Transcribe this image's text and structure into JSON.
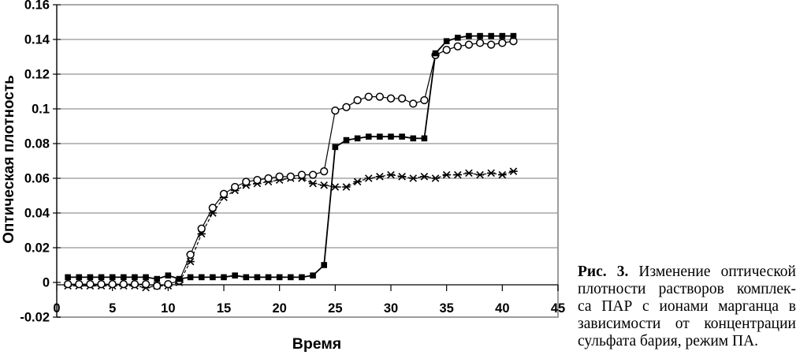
{
  "figure_caption": {
    "label": "Рис. 3.",
    "lines": [
      "Изменение оптической",
      "плотности растворов комплек-",
      "са ПАР с ионами марганца в",
      "зависимости от концентрации",
      "сульфата бария, режим ПА."
    ]
  },
  "chart_data": {
    "type": "line",
    "title": "",
    "xlabel": "Время",
    "ylabel": "Оптическая плотность",
    "xlim": [
      0,
      45
    ],
    "ylim": [
      -0.02,
      0.16
    ],
    "grid": true,
    "legend": "none",
    "colors": {
      "series": "#000000",
      "grid": "#7a7a7a",
      "border": "#9c9c9c"
    },
    "xticks": [
      {
        "v": 0,
        "label": "0"
      },
      {
        "v": 5,
        "label": "5"
      },
      {
        "v": 10,
        "label": "10"
      },
      {
        "v": 15,
        "label": "15"
      },
      {
        "v": 20,
        "label": "20"
      },
      {
        "v": 25,
        "label": "25"
      },
      {
        "v": 30,
        "label": "30"
      },
      {
        "v": 35,
        "label": "35"
      },
      {
        "v": 40,
        "label": "40"
      },
      {
        "v": 45,
        "label": "45"
      }
    ],
    "yticks": [
      {
        "v": -0.02,
        "label": "-0.02"
      },
      {
        "v": 0,
        "label": "0"
      },
      {
        "v": 0.02,
        "label": "0.02"
      },
      {
        "v": 0.04,
        "label": "0.04"
      },
      {
        "v": 0.06,
        "label": "0.06"
      },
      {
        "v": 0.08,
        "label": "0.08"
      },
      {
        "v": 0.1,
        "label": "0.1"
      },
      {
        "v": 0.12,
        "label": "0.12"
      },
      {
        "v": 0.14,
        "label": "0.14"
      },
      {
        "v": 0.16,
        "label": "0.16"
      }
    ],
    "x": [
      1,
      2,
      3,
      4,
      5,
      6,
      7,
      8,
      9,
      10,
      11,
      12,
      13,
      14,
      15,
      16,
      17,
      18,
      19,
      20,
      21,
      22,
      23,
      24,
      25,
      26,
      27,
      28,
      29,
      30,
      31,
      32,
      33,
      34,
      35,
      36,
      37,
      38,
      39,
      40,
      41
    ],
    "series": [
      {
        "name": "filled-squares",
        "marker": "square",
        "line_style": "solid",
        "values": [
          0.003,
          0.003,
          0.003,
          0.003,
          0.003,
          0.003,
          0.003,
          0.003,
          0.002,
          0.004,
          0.002,
          0.003,
          0.003,
          0.003,
          0.003,
          0.004,
          0.003,
          0.003,
          0.003,
          0.003,
          0.003,
          0.003,
          0.004,
          0.01,
          0.078,
          0.082,
          0.083,
          0.084,
          0.084,
          0.084,
          0.084,
          0.083,
          0.083,
          0.132,
          0.139,
          0.141,
          0.142,
          0.142,
          0.142,
          0.142,
          0.142
        ]
      },
      {
        "name": "open-circles",
        "marker": "circle",
        "line_style": "solid",
        "values": [
          -0.001,
          -0.001,
          -0.001,
          -0.001,
          -0.001,
          -0.001,
          -0.001,
          -0.001,
          -0.002,
          -0.001,
          0.001,
          0.016,
          0.031,
          0.043,
          0.051,
          0.055,
          0.058,
          0.059,
          0.06,
          0.061,
          0.061,
          0.062,
          0.062,
          0.064,
          0.099,
          0.101,
          0.105,
          0.107,
          0.107,
          0.106,
          0.106,
          0.103,
          0.105,
          0.131,
          0.134,
          0.136,
          0.137,
          0.138,
          0.137,
          0.138,
          0.139
        ]
      },
      {
        "name": "x-asterisks",
        "marker": "x-asterisk",
        "line_style": "dashed",
        "values": [
          -0.002,
          -0.002,
          -0.002,
          -0.002,
          -0.002,
          -0.002,
          -0.002,
          -0.003,
          -0.002,
          -0.002,
          0.0,
          0.012,
          0.028,
          0.04,
          0.049,
          0.053,
          0.056,
          0.057,
          0.058,
          0.059,
          0.06,
          0.06,
          0.057,
          0.056,
          0.055,
          0.055,
          0.058,
          0.06,
          0.061,
          0.062,
          0.061,
          0.06,
          0.061,
          0.06,
          0.062,
          0.062,
          0.063,
          0.062,
          0.063,
          0.062,
          0.064
        ]
      }
    ]
  }
}
